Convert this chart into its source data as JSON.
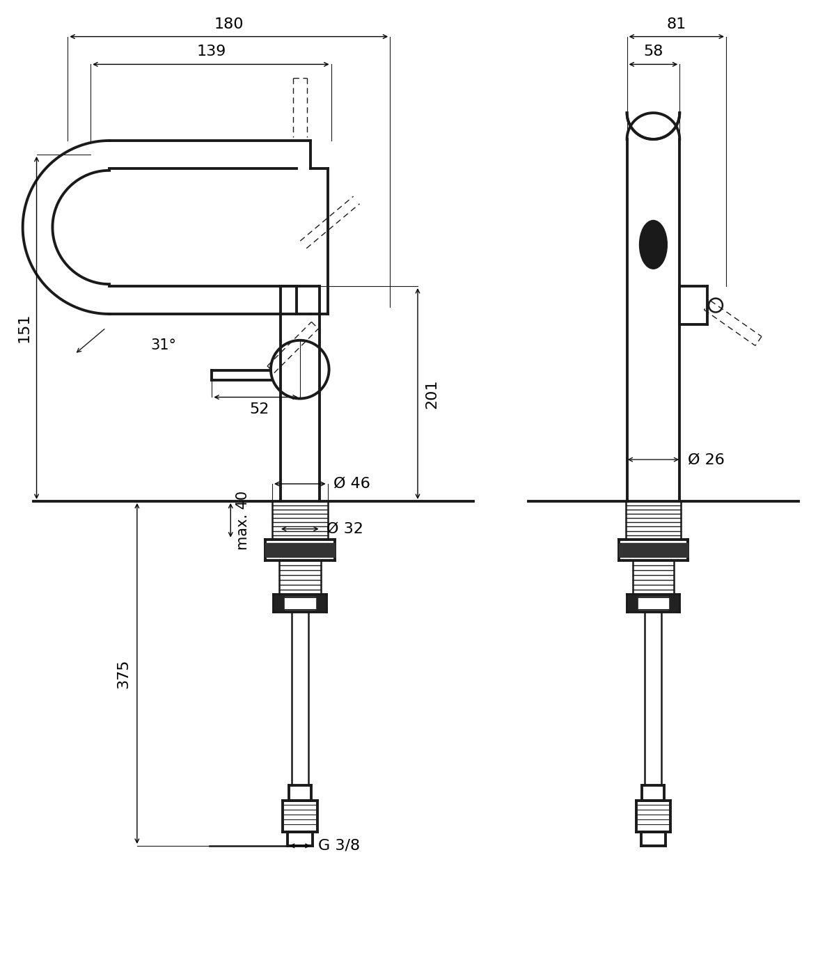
{
  "bg_color": "#ffffff",
  "line_color": "#1a1a1a",
  "fig_width": 11.98,
  "fig_height": 13.89,
  "dims": {
    "d180": "180",
    "d139": "139",
    "d151": "151",
    "d31": "31°",
    "d52": "52",
    "d201": "201",
    "d46": "Ø 46",
    "d32": "Ø 32",
    "d375": "375",
    "dmax40": "max. 40",
    "dg38": "G 3/8",
    "d81": "81",
    "d58": "58",
    "d26": "Ø 26"
  },
  "lw_heavy": 2.8,
  "lw_med": 1.8,
  "lw_thin": 1.0,
  "lw_dim": 1.0,
  "fs": 16
}
